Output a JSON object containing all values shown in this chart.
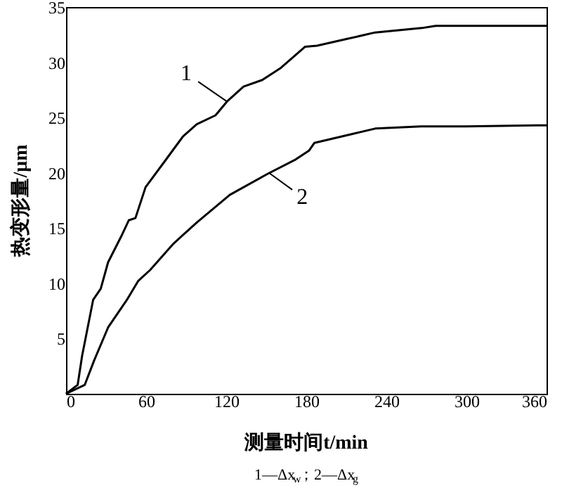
{
  "chart_data": {
    "type": "line",
    "xlabel": "测量时间t/min",
    "ylabel": "热变形量/μm",
    "xlim": [
      0,
      360
    ],
    "xticks": [
      0,
      60,
      120,
      180,
      240,
      300,
      360
    ],
    "ylim": [
      0,
      35
    ],
    "yticks": [
      5,
      10,
      15,
      20,
      25,
      30,
      35
    ],
    "grid": false,
    "marker": "none",
    "line_style": "solid",
    "series": [
      {
        "color": "#000000",
        "x": [
          0,
          8.7,
          12,
          20.3,
          26,
          31.5,
          42,
          47,
          52,
          59.6,
          73.7,
          87.7,
          98,
          112,
          121,
          133,
          147,
          161,
          179,
          188,
          210,
          231.6,
          266.6,
          277,
          320,
          360
        ],
        "values": [
          0,
          0.8,
          3.4,
          8.5,
          9.5,
          11.9,
          14.4,
          15.7,
          15.9,
          18.7,
          21,
          23.3,
          24.4,
          25.2,
          26.5,
          27.8,
          28.4,
          29.5,
          31.4,
          31.5,
          32.1,
          32.7,
          33.1,
          33.3,
          33.3,
          33.3
        ]
      },
      {
        "color": "#000000",
        "x": [
          0,
          14,
          21,
          31.5,
          45.6,
          54,
          63,
          80.6,
          98,
          122.7,
          151,
          172,
          182,
          186,
          214,
          231.6,
          266,
          300,
          360
        ],
        "values": [
          0,
          0.8,
          3.0,
          6.0,
          8.5,
          10.2,
          11.2,
          13.6,
          15.5,
          18.0,
          19.9,
          21.2,
          22.0,
          22.7,
          23.5,
          24.0,
          24.2,
          24.2,
          24.3
        ]
      }
    ],
    "annotations": [
      {
        "text": "1",
        "x": 120,
        "y": 26.5
      },
      {
        "text": "2",
        "x": 152,
        "y": 20.0
      },
      "1—Δx$_{w}$；2—Δx$_{g}$"
    ]
  }
}
